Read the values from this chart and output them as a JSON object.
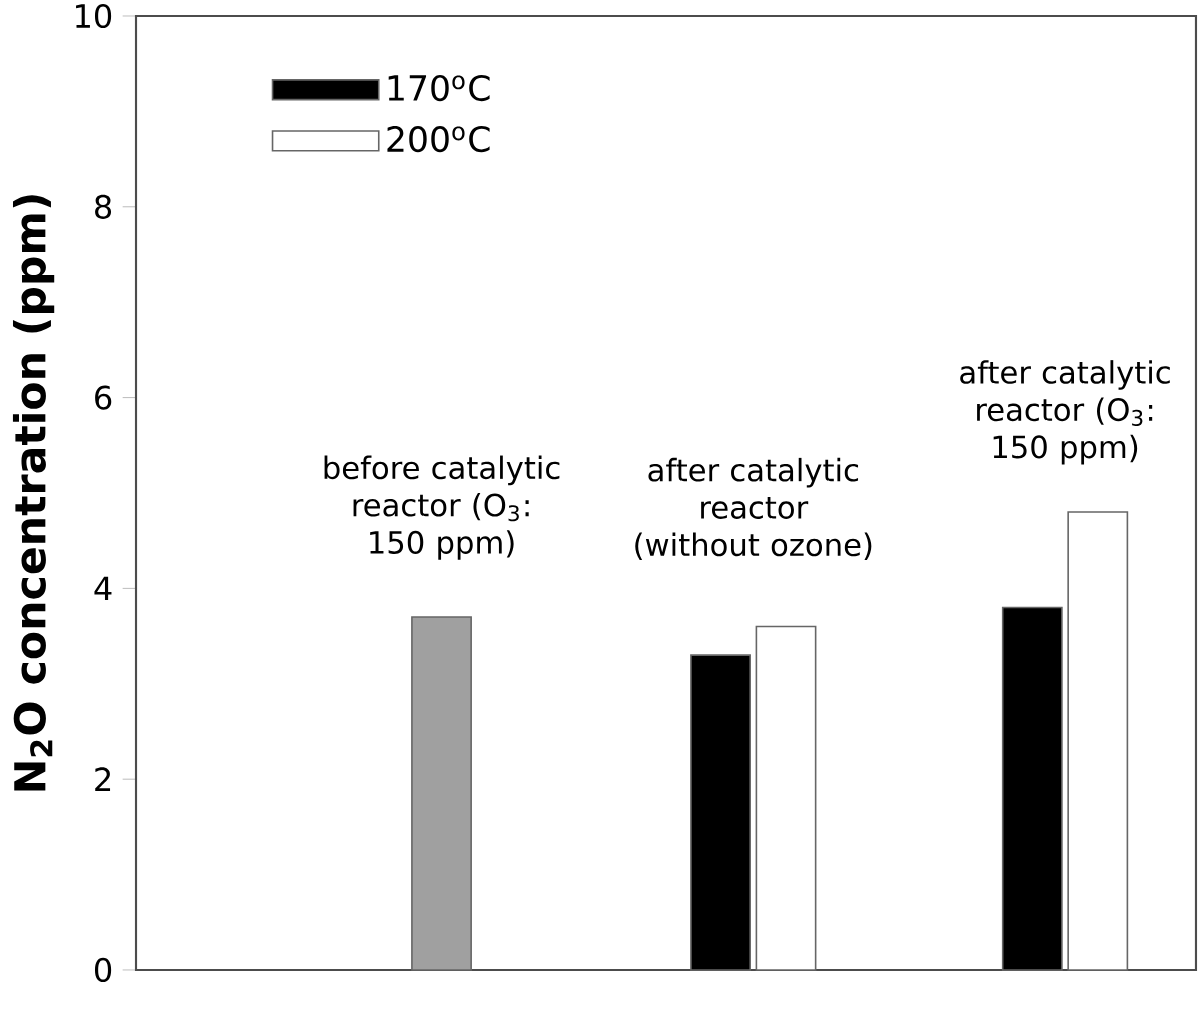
{
  "chart_data": {
    "type": "bar",
    "ylabel": "N$_{2}$O concentration (ppm)",
    "categories": [
      "before catalytic reactor (O$_{3}$: 150 ppm)",
      "after catalytic reactor (without ozone)",
      "after catalytic reactor (O$_{3}$: 150 ppm)"
    ],
    "series": [
      {
        "name": "170$^{o}$C",
        "color": "#000000",
        "values": [
          null,
          3.3,
          3.8
        ]
      },
      {
        "name": "200$^{o}$C",
        "color": "#ffffff",
        "values": [
          null,
          3.6,
          4.8
        ]
      },
      {
        "color": "#a0a0a0",
        "values": [
          3.7,
          null,
          null
        ]
      }
    ],
    "ylim": [
      0,
      10
    ],
    "yticks": [
      0,
      2,
      4,
      6,
      8,
      10
    ],
    "tick_labels": "y",
    "legend": "top left"
  }
}
